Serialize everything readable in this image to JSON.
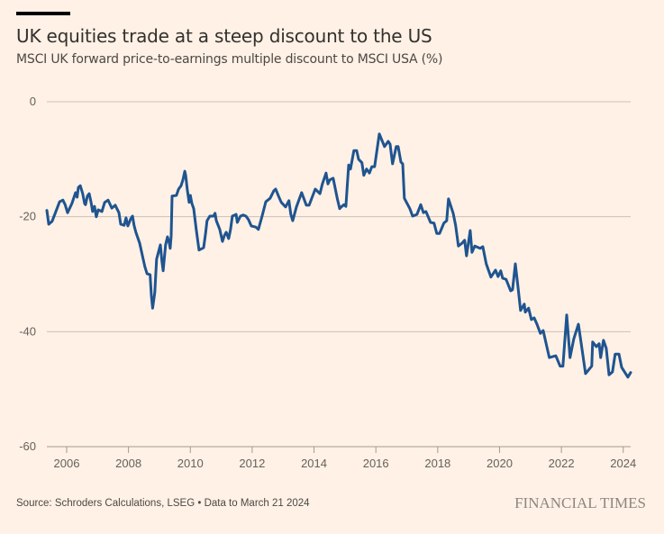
{
  "chart_data": {
    "type": "line",
    "title": "UK equities trade at a steep discount to the US",
    "subtitle": "MSCI UK forward price-to-earnings multiple discount to MSCI USA (%)",
    "xlabel": "",
    "ylabel": "",
    "xlim": [
      2005.36,
      2024.24
    ],
    "ylim": [
      -60,
      0
    ],
    "grid": true,
    "yticks": [
      0,
      -20,
      -40,
      -60
    ],
    "ytick_labels": [
      "0",
      "-20",
      "-40",
      "-60"
    ],
    "xticks": [
      2006,
      2008,
      2010,
      2012,
      2014,
      2016,
      2018,
      2020,
      2022,
      2024
    ],
    "xtick_labels": [
      "2006",
      "2008",
      "2010",
      "2012",
      "2014",
      "2016",
      "2018",
      "2020",
      "2022",
      "2024"
    ],
    "series": [
      {
        "name": "MSCI UK discount to MSCI USA",
        "color": "#1f5490",
        "points": [
          [
            2005.36,
            -18.9
          ],
          [
            2005.42,
            -21.3
          ],
          [
            2005.53,
            -20.8
          ],
          [
            2005.65,
            -19.1
          ],
          [
            2005.77,
            -17.4
          ],
          [
            2005.88,
            -17.1
          ],
          [
            2005.95,
            -17.9
          ],
          [
            2006.03,
            -19.3
          ],
          [
            2006.17,
            -17.7
          ],
          [
            2006.29,
            -15.8
          ],
          [
            2006.34,
            -16.6
          ],
          [
            2006.38,
            -14.9
          ],
          [
            2006.44,
            -14.6
          ],
          [
            2006.52,
            -16.0
          ],
          [
            2006.58,
            -17.7
          ],
          [
            2006.61,
            -17.9
          ],
          [
            2006.67,
            -16.4
          ],
          [
            2006.73,
            -16.0
          ],
          [
            2006.79,
            -17.5
          ],
          [
            2006.84,
            -19.1
          ],
          [
            2006.9,
            -18.2
          ],
          [
            2006.96,
            -20.0
          ],
          [
            2007.02,
            -18.8
          ],
          [
            2007.14,
            -19.1
          ],
          [
            2007.23,
            -17.5
          ],
          [
            2007.34,
            -17.1
          ],
          [
            2007.46,
            -18.5
          ],
          [
            2007.57,
            -18.0
          ],
          [
            2007.69,
            -19.3
          ],
          [
            2007.75,
            -21.3
          ],
          [
            2007.86,
            -21.5
          ],
          [
            2007.92,
            -20.2
          ],
          [
            2007.98,
            -21.6
          ],
          [
            2008.07,
            -20.4
          ],
          [
            2008.13,
            -19.9
          ],
          [
            2008.18,
            -21.5
          ],
          [
            2008.24,
            -22.7
          ],
          [
            2008.36,
            -24.6
          ],
          [
            2008.45,
            -26.8
          ],
          [
            2008.53,
            -28.7
          ],
          [
            2008.6,
            -29.9
          ],
          [
            2008.7,
            -30.1
          ],
          [
            2008.74,
            -33.7
          ],
          [
            2008.78,
            -35.9
          ],
          [
            2008.85,
            -33.2
          ],
          [
            2008.91,
            -27.4
          ],
          [
            2009.03,
            -24.9
          ],
          [
            2009.08,
            -27.7
          ],
          [
            2009.12,
            -29.4
          ],
          [
            2009.2,
            -24.9
          ],
          [
            2009.26,
            -23.5
          ],
          [
            2009.32,
            -24.6
          ],
          [
            2009.35,
            -25.5
          ],
          [
            2009.38,
            -23.3
          ],
          [
            2009.41,
            -16.4
          ],
          [
            2009.55,
            -16.3
          ],
          [
            2009.62,
            -15.2
          ],
          [
            2009.7,
            -14.6
          ],
          [
            2009.76,
            -13.6
          ],
          [
            2009.82,
            -12.1
          ],
          [
            2009.85,
            -12.8
          ],
          [
            2009.9,
            -15.2
          ],
          [
            2009.96,
            -17.5
          ],
          [
            2010.0,
            -16.3
          ],
          [
            2010.05,
            -17.7
          ],
          [
            2010.11,
            -18.6
          ],
          [
            2010.19,
            -22.2
          ],
          [
            2010.28,
            -25.8
          ],
          [
            2010.43,
            -25.4
          ],
          [
            2010.49,
            -23.0
          ],
          [
            2010.54,
            -20.7
          ],
          [
            2010.63,
            -19.9
          ],
          [
            2010.75,
            -19.9
          ],
          [
            2010.8,
            -19.4
          ],
          [
            2010.84,
            -20.7
          ],
          [
            2010.95,
            -22.2
          ],
          [
            2011.04,
            -24.3
          ],
          [
            2011.1,
            -23.3
          ],
          [
            2011.16,
            -22.7
          ],
          [
            2011.24,
            -23.8
          ],
          [
            2011.3,
            -22.2
          ],
          [
            2011.36,
            -19.9
          ],
          [
            2011.48,
            -19.6
          ],
          [
            2011.52,
            -21.0
          ],
          [
            2011.62,
            -19.9
          ],
          [
            2011.71,
            -19.7
          ],
          [
            2011.8,
            -19.9
          ],
          [
            2011.88,
            -20.5
          ],
          [
            2011.97,
            -21.6
          ],
          [
            2012.12,
            -21.8
          ],
          [
            2012.2,
            -22.2
          ],
          [
            2012.32,
            -19.9
          ],
          [
            2012.44,
            -17.4
          ],
          [
            2012.58,
            -16.8
          ],
          [
            2012.7,
            -15.5
          ],
          [
            2012.76,
            -15.2
          ],
          [
            2012.85,
            -16.4
          ],
          [
            2012.94,
            -17.5
          ],
          [
            2013.08,
            -18.3
          ],
          [
            2013.19,
            -17.2
          ],
          [
            2013.25,
            -19.6
          ],
          [
            2013.31,
            -20.7
          ],
          [
            2013.43,
            -18.3
          ],
          [
            2013.6,
            -15.8
          ],
          [
            2013.75,
            -18.0
          ],
          [
            2013.84,
            -18.0
          ],
          [
            2014.04,
            -15.2
          ],
          [
            2014.19,
            -16.0
          ],
          [
            2014.27,
            -14.3
          ],
          [
            2014.39,
            -12.4
          ],
          [
            2014.45,
            -14.3
          ],
          [
            2014.51,
            -13.6
          ],
          [
            2014.62,
            -13.3
          ],
          [
            2014.75,
            -16.8
          ],
          [
            2014.83,
            -18.6
          ],
          [
            2014.88,
            -18.3
          ],
          [
            2014.97,
            -17.9
          ],
          [
            2015.03,
            -18.2
          ],
          [
            2015.12,
            -11.0
          ],
          [
            2015.18,
            -11.7
          ],
          [
            2015.29,
            -8.5
          ],
          [
            2015.38,
            -8.5
          ],
          [
            2015.44,
            -10.0
          ],
          [
            2015.55,
            -10.6
          ],
          [
            2015.61,
            -12.8
          ],
          [
            2015.7,
            -11.7
          ],
          [
            2015.79,
            -12.4
          ],
          [
            2015.87,
            -11.3
          ],
          [
            2015.96,
            -11.3
          ],
          [
            2016.11,
            -5.6
          ],
          [
            2016.28,
            -7.8
          ],
          [
            2016.4,
            -6.9
          ],
          [
            2016.46,
            -7.4
          ],
          [
            2016.54,
            -10.8
          ],
          [
            2016.66,
            -7.8
          ],
          [
            2016.72,
            -7.8
          ],
          [
            2016.81,
            -10.5
          ],
          [
            2016.87,
            -10.8
          ],
          [
            2016.92,
            -16.8
          ],
          [
            2017.1,
            -18.6
          ],
          [
            2017.19,
            -19.9
          ],
          [
            2017.33,
            -19.6
          ],
          [
            2017.45,
            -17.9
          ],
          [
            2017.54,
            -19.3
          ],
          [
            2017.62,
            -19.1
          ],
          [
            2017.77,
            -21.0
          ],
          [
            2017.88,
            -21.1
          ],
          [
            2017.97,
            -22.9
          ],
          [
            2018.06,
            -22.9
          ],
          [
            2018.2,
            -21.1
          ],
          [
            2018.29,
            -20.7
          ],
          [
            2018.35,
            -16.9
          ],
          [
            2018.5,
            -19.4
          ],
          [
            2018.58,
            -21.5
          ],
          [
            2018.67,
            -25.1
          ],
          [
            2018.79,
            -24.6
          ],
          [
            2018.87,
            -24.1
          ],
          [
            2018.93,
            -26.8
          ],
          [
            2019.05,
            -22.4
          ],
          [
            2019.11,
            -26.2
          ],
          [
            2019.2,
            -25.1
          ],
          [
            2019.37,
            -25.5
          ],
          [
            2019.46,
            -25.2
          ],
          [
            2019.57,
            -28.2
          ],
          [
            2019.72,
            -30.5
          ],
          [
            2019.87,
            -29.3
          ],
          [
            2019.95,
            -30.4
          ],
          [
            2020.04,
            -29.4
          ],
          [
            2020.1,
            -30.7
          ],
          [
            2020.21,
            -30.9
          ],
          [
            2020.36,
            -32.9
          ],
          [
            2020.42,
            -32.7
          ],
          [
            2020.51,
            -28.2
          ],
          [
            2020.59,
            -31.9
          ],
          [
            2020.68,
            -36.3
          ],
          [
            2020.8,
            -35.2
          ],
          [
            2020.83,
            -36.6
          ],
          [
            2020.94,
            -35.9
          ],
          [
            2021.03,
            -37.9
          ],
          [
            2021.12,
            -37.6
          ],
          [
            2021.21,
            -38.7
          ],
          [
            2021.32,
            -40.3
          ],
          [
            2021.41,
            -39.8
          ],
          [
            2021.61,
            -44.5
          ],
          [
            2021.82,
            -44.2
          ],
          [
            2021.96,
            -46.0
          ],
          [
            2022.05,
            -46.0
          ],
          [
            2022.17,
            -37.1
          ],
          [
            2022.28,
            -44.5
          ],
          [
            2022.4,
            -41.3
          ],
          [
            2022.55,
            -38.7
          ],
          [
            2022.69,
            -43.9
          ],
          [
            2022.78,
            -47.3
          ],
          [
            2022.98,
            -46.0
          ],
          [
            2023.01,
            -41.8
          ],
          [
            2023.13,
            -42.6
          ],
          [
            2023.22,
            -42.1
          ],
          [
            2023.27,
            -44.5
          ],
          [
            2023.36,
            -41.5
          ],
          [
            2023.45,
            -42.9
          ],
          [
            2023.54,
            -47.5
          ],
          [
            2023.65,
            -47.0
          ],
          [
            2023.74,
            -43.9
          ],
          [
            2023.86,
            -43.9
          ],
          [
            2023.95,
            -46.2
          ],
          [
            2024.15,
            -47.9
          ],
          [
            2024.24,
            -47.1
          ]
        ]
      }
    ],
    "colors": {
      "background": "#fff1e5",
      "grid": "#ccc1b7",
      "axis": "#a39a92",
      "line": "#1f5490"
    }
  },
  "footer": {
    "source": "Source: Schroders Calculations, LSEG • Data to March 21 2024",
    "logo_text": "FINANCIAL TIMES"
  }
}
